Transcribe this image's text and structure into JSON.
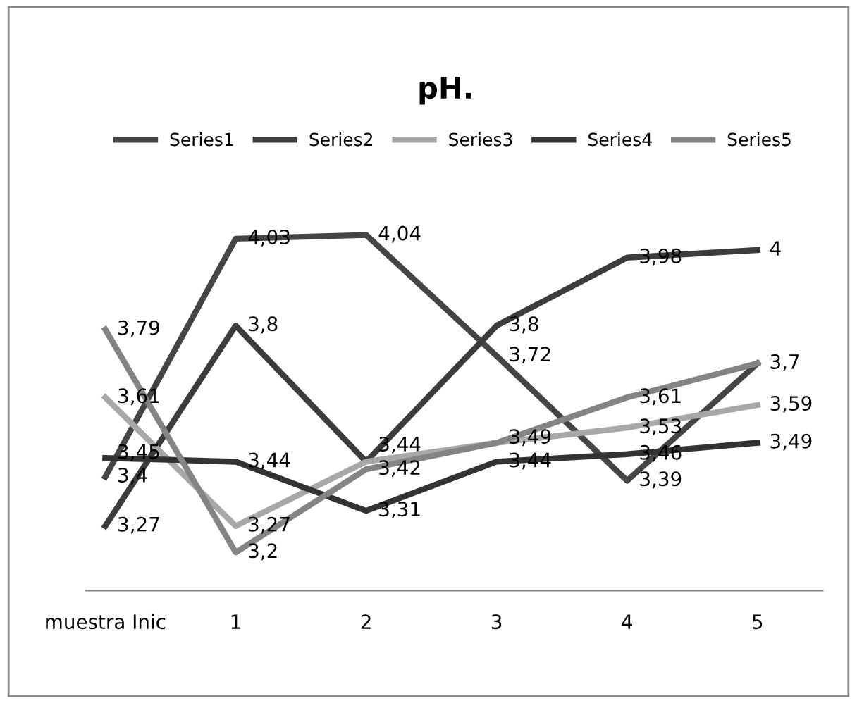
{
  "chart_data": {
    "type": "line",
    "title": "pH.",
    "categories": [
      "muestra Inic",
      "1",
      "2",
      "3",
      "4",
      "5"
    ],
    "series": [
      {
        "name": "Series1",
        "color": "#454545",
        "values": [
          3.4,
          4.03,
          4.04,
          3.72,
          3.39,
          3.7
        ],
        "value_labels": [
          "3,4",
          "4,03",
          "4,04",
          "3,72",
          "3,39",
          "3,7"
        ]
      },
      {
        "name": "Series2",
        "color": "#3c3c3c",
        "values": [
          3.27,
          3.8,
          3.44,
          3.8,
          3.98,
          4
        ],
        "value_labels": [
          "3,27",
          "3,8",
          null,
          "3,8",
          "3,98",
          "4"
        ]
      },
      {
        "name": "Series3",
        "color": "#a8a8a8",
        "values": [
          3.61,
          3.27,
          3.44,
          3.49,
          3.53,
          3.59
        ],
        "value_labels": [
          "3,61",
          "3,27",
          "3,44",
          null,
          "3,53",
          "3,59"
        ]
      },
      {
        "name": "Series4",
        "color": "#333333",
        "values": [
          3.45,
          3.44,
          3.31,
          3.44,
          3.46,
          3.49
        ],
        "value_labels": [
          "3,45",
          "3,44",
          "3,31",
          "3,44",
          "3,46",
          "3,49"
        ]
      },
      {
        "name": "Series5",
        "color": "#848484",
        "values": [
          3.79,
          3.2,
          3.42,
          3.49,
          3.61,
          3.7
        ],
        "value_labels": [
          "3,79",
          "3,2",
          "3,42",
          "3,49",
          "3,61",
          null
        ]
      }
    ],
    "tick_labels": "x",
    "legend": "top",
    "grid": false,
    "marker": "none",
    "line_style": "solid"
  }
}
